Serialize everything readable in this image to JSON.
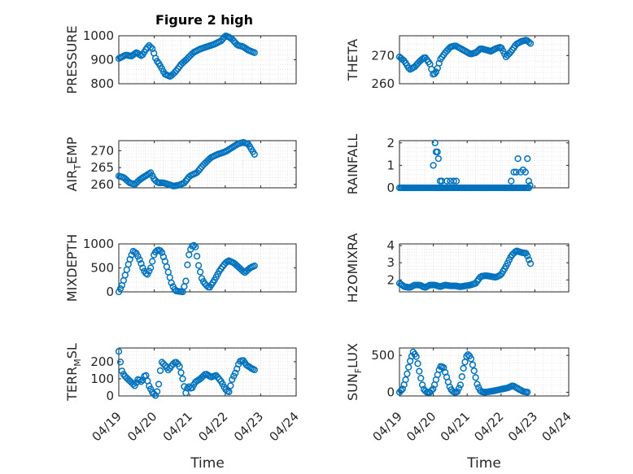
{
  "figure": {
    "title": "Figure 2 high"
  },
  "colors": {
    "marker": "#0072BD",
    "axis": "#262626",
    "grid": "#d9d9d9"
  },
  "chart_data": [
    {
      "type": "scatter",
      "id": "pressure",
      "ylabel": "PRESSURE",
      "ylim": [
        800,
        1000
      ],
      "yticks": [
        800,
        900,
        1000
      ],
      "ytick_labels": [
        "800",
        "900",
        "1000"
      ],
      "xlim": [
        0,
        5
      ],
      "xticks_visible": false,
      "knots_x": [
        0,
        0.2,
        0.35,
        0.5,
        0.55,
        0.65,
        0.75,
        0.85,
        0.95,
        1.05,
        1.15,
        1.3,
        1.45,
        1.6,
        1.75,
        1.9,
        2.1,
        2.3,
        2.5,
        2.7,
        2.9,
        3.0,
        3.1,
        3.2,
        3.35,
        3.5,
        3.65,
        3.85
      ],
      "knots_y": [
        905,
        920,
        915,
        930,
        925,
        915,
        940,
        960,
        945,
        900,
        880,
        840,
        830,
        850,
        880,
        900,
        930,
        945,
        955,
        965,
        980,
        1000,
        995,
        985,
        960,
        955,
        940,
        928
      ]
    },
    {
      "type": "scatter",
      "id": "theta",
      "ylabel": "THETA",
      "ylim": [
        260,
        277
      ],
      "yticks": [
        260,
        270
      ],
      "ytick_labels": [
        "260",
        "270"
      ],
      "xlim": [
        0,
        5
      ],
      "xticks_visible": false,
      "knots_x": [
        0,
        0.15,
        0.3,
        0.45,
        0.6,
        0.75,
        0.9,
        1.0,
        1.1,
        1.2,
        1.35,
        1.5,
        1.65,
        1.8,
        1.95,
        2.1,
        2.25,
        2.4,
        2.55,
        2.7,
        2.85,
        3.0,
        3.15,
        3.3,
        3.45,
        3.6,
        3.75,
        3.9
      ],
      "knots_y": [
        269.5,
        268,
        265,
        266,
        268,
        269.5,
        267,
        263,
        264.5,
        268.5,
        271,
        273,
        273.5,
        272.5,
        271.5,
        270.5,
        271,
        272.5,
        272,
        271.5,
        272.5,
        273,
        269.5,
        271.5,
        274,
        275,
        275.5,
        274
      ]
    },
    {
      "type": "scatter",
      "id": "air_temp",
      "ylabel": "AIR_TEMP",
      "ylim": [
        259,
        273
      ],
      "yticks": [
        260,
        265,
        270
      ],
      "ytick_labels": [
        "260",
        "265",
        "270"
      ],
      "xlim": [
        0,
        5
      ],
      "xticks_visible": false,
      "knots_x": [
        0,
        0.15,
        0.3,
        0.45,
        0.6,
        0.75,
        0.9,
        1.0,
        1.1,
        1.25,
        1.4,
        1.55,
        1.7,
        1.85,
        2.0,
        2.2,
        2.4,
        2.6,
        2.8,
        2.95,
        3.05,
        3.2,
        3.35,
        3.5,
        3.65,
        3.85
      ],
      "knots_y": [
        262.5,
        262,
        260.5,
        260,
        261.5,
        262.5,
        263.5,
        261.5,
        260.5,
        260.5,
        260,
        259.5,
        259.8,
        260.5,
        262.5,
        263.5,
        266,
        268,
        269,
        269.5,
        270,
        271,
        272,
        272.5,
        272,
        268.5
      ]
    },
    {
      "type": "scatter",
      "id": "rainfall",
      "ylabel": "RAINFALL",
      "ylim": [
        0,
        2.1
      ],
      "yticks": [
        0,
        1,
        2
      ],
      "ytick_labels": [
        "0",
        "1",
        "2"
      ],
      "xlim": [
        0,
        5
      ],
      "xticks_visible": false,
      "baseline_span": [
        0,
        3.85
      ],
      "spikes": [
        [
          1.0,
          1.0
        ],
        [
          1.05,
          2.0
        ],
        [
          1.08,
          1.6
        ],
        [
          1.12,
          1.6
        ],
        [
          1.15,
          1.3
        ],
        [
          1.2,
          0.3
        ],
        [
          1.25,
          0.3
        ],
        [
          1.4,
          0.3
        ],
        [
          1.5,
          0.3
        ],
        [
          1.6,
          0.3
        ],
        [
          1.68,
          0.3
        ],
        [
          3.3,
          0.3
        ],
        [
          3.38,
          0.7
        ],
        [
          3.45,
          0.7
        ],
        [
          3.5,
          1.3
        ],
        [
          3.58,
          0.7
        ],
        [
          3.65,
          0.8
        ],
        [
          3.72,
          0.7
        ],
        [
          3.78,
          1.3
        ],
        [
          3.82,
          0.3
        ],
        [
          3.86,
          0.1
        ]
      ]
    },
    {
      "type": "scatter",
      "id": "mixdepth",
      "ylabel": "MIXDEPTH",
      "ylim": [
        0,
        1000
      ],
      "yticks": [
        0,
        500,
        1000
      ],
      "ytick_labels": [
        "0",
        "500",
        "1000"
      ],
      "xlim": [
        0,
        5
      ],
      "xticks_visible": false,
      "knots_x": [
        0,
        0.1,
        0.2,
        0.3,
        0.4,
        0.5,
        0.6,
        0.7,
        0.8,
        0.9,
        1.0,
        1.1,
        1.2,
        1.3,
        1.4,
        1.5,
        1.6,
        1.8,
        1.9,
        1.95,
        2.05,
        2.15,
        2.25,
        2.35,
        2.45,
        2.55,
        2.7,
        2.85,
        3.0,
        3.1,
        3.25,
        3.4,
        3.55,
        3.7,
        3.85
      ],
      "knots_y": [
        0,
        150,
        400,
        650,
        850,
        800,
        650,
        450,
        350,
        500,
        800,
        880,
        850,
        650,
        400,
        150,
        20,
        0,
        250,
        700,
        950,
        980,
        550,
        250,
        150,
        80,
        250,
        450,
        600,
        650,
        600,
        500,
        400,
        500,
        550
      ]
    },
    {
      "type": "scatter",
      "id": "h2omixra",
      "ylabel": "H2OMIXRA",
      "ylim": [
        1.3,
        4.1
      ],
      "yticks": [
        2,
        3,
        4
      ],
      "ytick_labels": [
        "2",
        "3",
        "4"
      ],
      "xlim": [
        0,
        5
      ],
      "xticks_visible": false,
      "knots_x": [
        0,
        0.15,
        0.3,
        0.45,
        0.6,
        0.75,
        0.9,
        1.05,
        1.2,
        1.35,
        1.5,
        1.65,
        1.8,
        1.95,
        2.1,
        2.25,
        2.4,
        2.55,
        2.7,
        2.85,
        3.0,
        3.15,
        3.3,
        3.45,
        3.6,
        3.75,
        3.9
      ],
      "knots_y": [
        1.8,
        1.6,
        1.55,
        1.7,
        1.7,
        1.55,
        1.7,
        1.7,
        1.6,
        1.7,
        1.65,
        1.65,
        1.6,
        1.65,
        1.7,
        1.8,
        2.2,
        2.25,
        2.2,
        2.15,
        2.3,
        2.8,
        3.4,
        3.7,
        3.6,
        3.55,
        2.8
      ]
    },
    {
      "type": "scatter",
      "id": "terr_msl",
      "ylabel": "TERR_MSL",
      "ylim": [
        0,
        280
      ],
      "yticks": [
        0,
        100,
        200
      ],
      "ytick_labels": [
        "0",
        "100",
        "200"
      ],
      "xlim": [
        0,
        5
      ],
      "xticks_visible": true,
      "xtick_labels": [
        "04/19",
        "04/20",
        "04/21",
        "04/22",
        "04/23",
        "04/24"
      ],
      "xlabel": "Time",
      "knots_x": [
        0,
        0.08,
        0.15,
        0.25,
        0.35,
        0.45,
        0.55,
        0.65,
        0.75,
        0.85,
        0.95,
        1.05,
        1.12,
        1.2,
        1.3,
        1.4,
        1.5,
        1.6,
        1.7,
        1.8,
        1.85,
        1.9,
        1.95,
        2.05,
        2.15,
        2.3,
        2.45,
        2.6,
        2.75,
        2.9,
        3.0,
        3.1,
        3.2,
        3.3,
        3.4,
        3.5,
        3.6,
        3.75,
        3.85
      ],
      "knots_y": [
        260,
        150,
        120,
        100,
        80,
        60,
        100,
        80,
        130,
        60,
        20,
        0,
        60,
        200,
        180,
        150,
        180,
        200,
        180,
        100,
        50,
        10,
        60,
        40,
        80,
        100,
        130,
        110,
        120,
        80,
        40,
        20,
        100,
        140,
        200,
        210,
        180,
        160,
        150
      ]
    },
    {
      "type": "scatter",
      "id": "sun_flux",
      "ylabel": "SUN_FLUX",
      "ylim": [
        -50,
        600
      ],
      "yticks": [
        0,
        500
      ],
      "ytick_labels": [
        "0",
        "500"
      ],
      "xlim": [
        0,
        5
      ],
      "xticks_visible": true,
      "xtick_labels": [
        "04/19",
        "04/20",
        "04/21",
        "04/22",
        "04/23",
        "04/24"
      ],
      "xlabel": "Time",
      "knots_x": [
        0,
        0.1,
        0.2,
        0.3,
        0.4,
        0.5,
        0.6,
        0.7,
        0.8,
        0.9,
        1.0,
        1.1,
        1.2,
        1.3,
        1.4,
        1.5,
        1.6,
        1.7,
        1.8,
        1.9,
        2.0,
        2.1,
        2.2,
        2.3,
        2.4,
        2.5,
        2.6,
        2.8,
        3.0,
        3.2,
        3.35,
        3.5,
        3.65,
        3.8
      ],
      "knots_y": [
        0,
        50,
        200,
        400,
        550,
        480,
        250,
        50,
        0,
        0,
        50,
        200,
        350,
        340,
        200,
        50,
        0,
        0,
        100,
        350,
        520,
        480,
        300,
        100,
        10,
        0,
        5,
        20,
        40,
        60,
        90,
        50,
        10,
        0
      ]
    }
  ]
}
